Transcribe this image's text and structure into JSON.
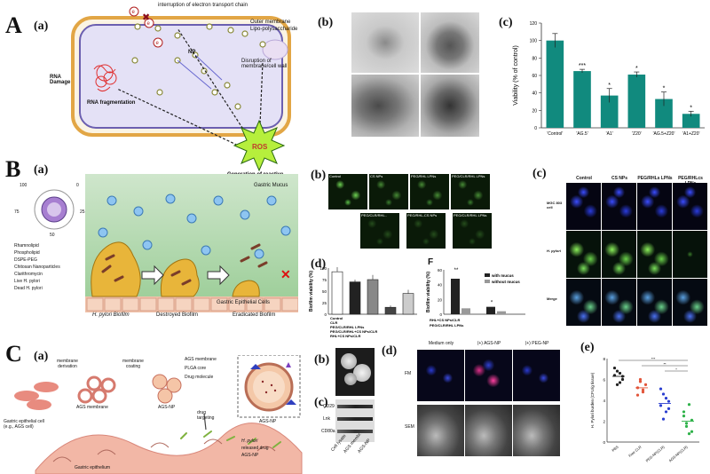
{
  "sections": {
    "A": {
      "letter": "A",
      "panel_a": "(a)",
      "panel_b": "(b)",
      "panel_c": "(c)",
      "cell_labels": {
        "etc": "interruption of electron transport chain",
        "outer": "Outer membrane",
        "lps": "Lipo-polysaccharide",
        "np": "NP",
        "rna_damage": "RNA\nDamage",
        "rna_frag": "RNA fragmentation",
        "disruption": "Disruption of\nmembrane/cell wall",
        "ros": "ROS",
        "generation": "Generation of reactive\noxygen species"
      },
      "chart_data": {
        "type": "bar",
        "categories": [
          "Control",
          "AG.5",
          "A1",
          "Z20",
          "AG.5+Z20",
          "A1+Z20"
        ],
        "values": [
          100,
          65,
          37,
          61,
          33,
          16
        ],
        "errors": [
          8,
          2,
          8,
          3,
          8,
          3
        ],
        "significance": [
          "",
          "***",
          "*",
          "*",
          "*",
          "*"
        ],
        "ylabel": "Viability (% of control)",
        "ylim": [
          0,
          120
        ],
        "yticks": [
          0,
          20,
          40,
          60,
          80,
          100,
          120
        ],
        "color": "#118a7e"
      }
    },
    "B": {
      "letter": "B",
      "panel_a": "(a)",
      "panel_b": "(b)",
      "panel_c": "(c)",
      "panel_d": "(d)",
      "legend": [
        "Rhamnolipid",
        "Phospholipid",
        "DSPE-PEG",
        "Chitosan Nanoparticles",
        "Clarithromycin",
        "Live H. pylori",
        "Dead H. pylori"
      ],
      "dial": [
        "100",
        "0",
        "75",
        "25",
        "50"
      ],
      "scene": {
        "mucus": "Gastric Mucus",
        "epithelial": "Gastric Epithelial Cells",
        "biofilm1": "H. pylori Biofilm",
        "biofilm2": "Destroyed Biofilm",
        "biofilm3": "Eradicated Biofilm"
      },
      "micro_b": [
        "Control",
        "CS NPs",
        "PEG/RHL LPNs",
        "PEG/CLR/RHL LPNs",
        "PEG/CLR/RHL..",
        "PEG/RHL-CS NPs",
        "PEG/CLR/RHL LPNs"
      ],
      "micro_c_cols": [
        "Control",
        "CS NPs",
        "PEG/RHLs LPNs",
        "PEG/RHLcs LPNs"
      ],
      "micro_c_rows": [
        "MGC 803 cell",
        "H. pylori",
        "Merge"
      ],
      "chart_d": {
        "type": "bar",
        "categories": [
          "Control",
          "CLR",
          "PEG/CLR/RHL LPNs",
          "PEG/CLR/RHL+CS NPs/CLR",
          "RHL+CS NPs/CLR"
        ],
        "values": [
          92,
          70,
          75,
          15,
          45
        ],
        "errors": [
          10,
          5,
          10,
          4,
          8
        ],
        "ylabel": "Biofilm viability (%)",
        "yticks": [
          0,
          25,
          50,
          75,
          100
        ]
      },
      "chart_f": {
        "label": "F",
        "type": "bar",
        "groups": [
          "RHL+CS NPs/CLR",
          "PEG/CLR/RHL LPNs"
        ],
        "series": [
          {
            "name": "with mucus",
            "values": [
              48,
              10
            ]
          },
          {
            "name": "without mucus",
            "values": [
              8,
              4
            ]
          }
        ],
        "ylabel": "Biofilm viability (%)",
        "yticks": [
          0,
          20,
          40,
          60
        ],
        "sig": [
          "**",
          "*"
        ]
      }
    },
    "C": {
      "letter": "C",
      "panel_a": "(a)",
      "panel_b": "(b)",
      "panel_c": "(c)",
      "panel_d": "(d)",
      "panel_e": "(e)",
      "labels": {
        "gastric_cell": "Gastric epithelial cell\n(e.g., AGS cell)",
        "membrane_derivation": "membrane\nderivation",
        "membrane_coating": "membrane\ncoating",
        "ags_membrane": "AGS membrane",
        "ags_np": "AGS-NP",
        "drug_targeting": "drug\ntargeting",
        "gastric_epithelium": "Gastric epithelium",
        "box_ags_membrane": "AGS membrane",
        "box_plga": "PLGA core",
        "box_drug": "Drug molecule",
        "box_agsnp": "AGS-NP",
        "legend1": "H. pylori",
        "legend2": "released drug",
        "legend3": "AGS-NP"
      },
      "blot_labels": [
        "CD29",
        "Lnk",
        "CD80a"
      ],
      "blot_lanes": [
        "Cell lysate",
        "AGS membr.",
        "AGS-NP"
      ],
      "micro_d_cols": [
        "Medium only",
        "(+) AGS-NP",
        "(+) PEG-NP"
      ],
      "micro_d_rows": [
        "FM",
        "SEM"
      ],
      "chart_e": {
        "type": "scatter",
        "categories": [
          "PBS",
          "Free CLR",
          "PEG-NP(CLR)",
          "AGS-NP(CLR)"
        ],
        "colors": [
          "#222222",
          "#e2553a",
          "#2b3fd0",
          "#2fb24a"
        ],
        "points": [
          [
            6.4,
            6.8,
            5.7,
            6.0,
            7.1,
            5.5,
            6.6,
            6.3
          ],
          [
            5.2,
            5.8,
            4.8,
            5.5,
            4.5,
            6.0,
            5.0
          ],
          [
            3.5,
            4.6,
            2.9,
            3.9,
            5.1,
            2.2,
            4.2,
            3.2
          ],
          [
            2.5,
            1.8,
            3.6,
            1.0,
            2.9,
            1.5,
            0.8,
            2.1
          ]
        ],
        "means": [
          6.3,
          5.2,
          3.7,
          2.0
        ],
        "ylabel": "H. Pylori burden (CFU/g tissue)",
        "ylim": [
          0,
          8
        ],
        "sig": [
          "***",
          "**",
          "*"
        ]
      }
    }
  }
}
